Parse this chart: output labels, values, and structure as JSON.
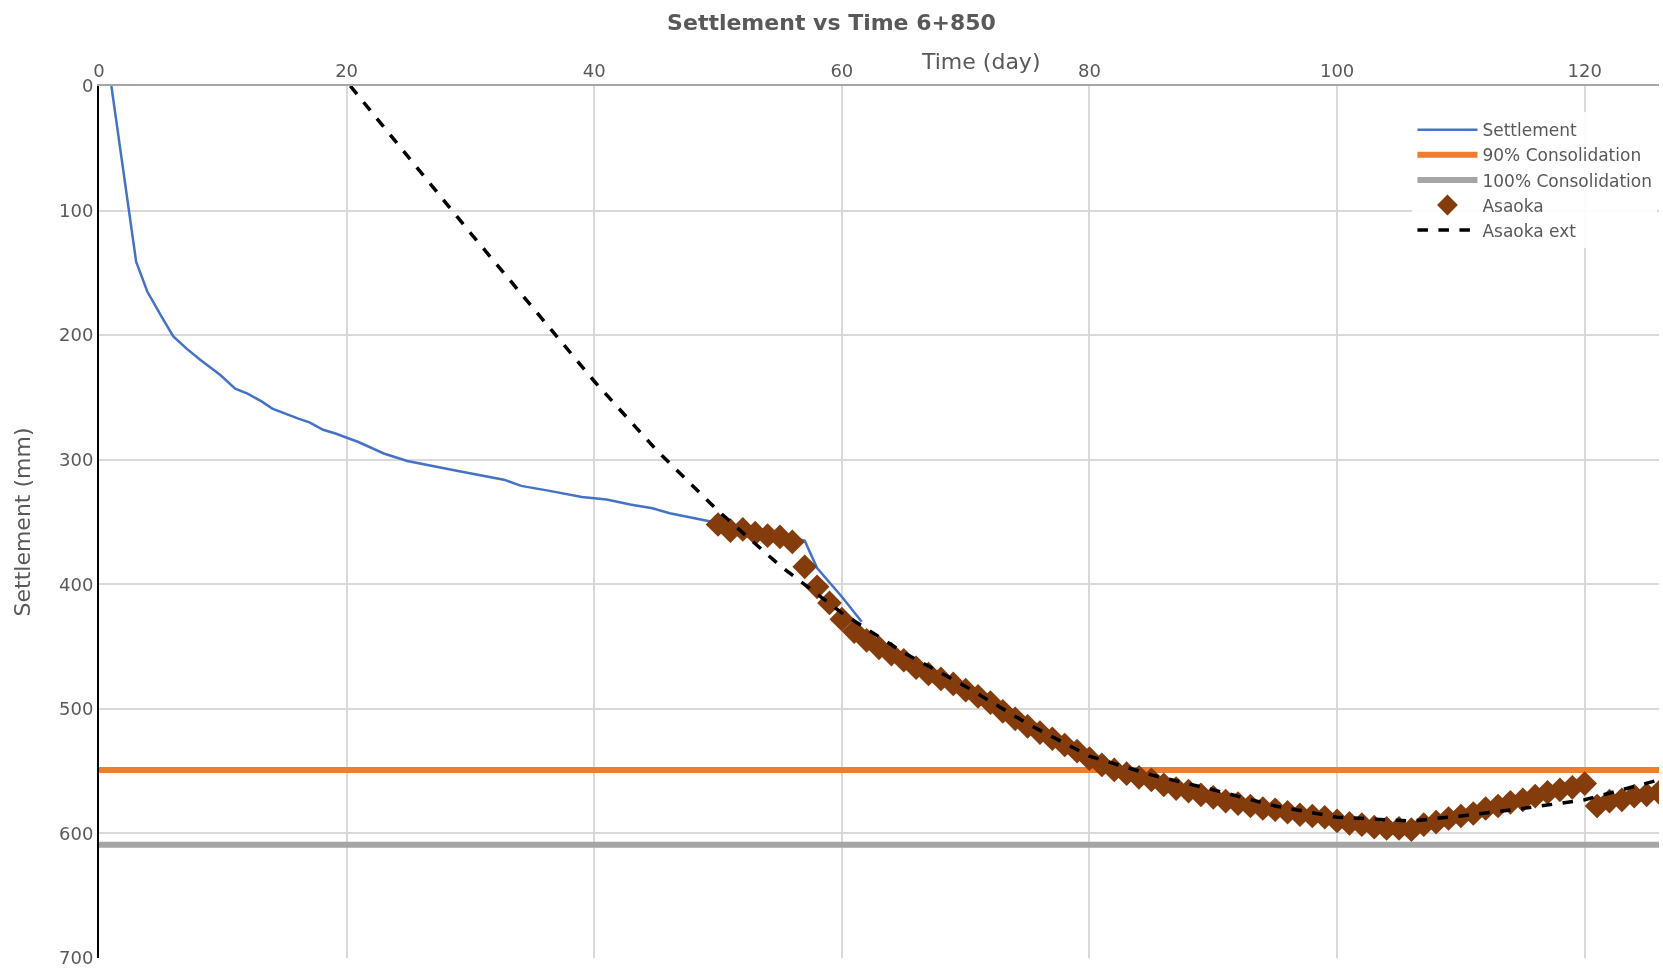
{
  "chart_data": {
    "type": "line",
    "title": "Settlement vs Time 6+850",
    "xlabel": "Time (day)",
    "ylabel": "Settlement (mm)",
    "xlim": [
      0,
      126
    ],
    "xticks": [
      0,
      20,
      40,
      60,
      80,
      100,
      120
    ],
    "ylim": [
      700,
      0
    ],
    "yticks": [
      0,
      100,
      200,
      300,
      400,
      500,
      600,
      700
    ],
    "grid": true,
    "legend": "top right",
    "series": [
      {
        "name": "Settlement",
        "color": "#4472c4",
        "x": [
          1.0,
          3.0,
          3.9,
          5.1,
          6.0,
          7.1,
          8.2,
          9.8,
          11.0,
          12.0,
          13.1,
          14.0,
          16.1,
          17.0,
          18.1,
          19.1,
          21.0,
          23.0,
          24.9,
          29.0,
          32.7,
          34.1,
          36.4,
          39.0,
          41.0,
          42.9,
          44.7,
          46.1,
          49.1,
          57.0,
          58.0,
          60.0,
          61.6
        ],
        "values": [
          0,
          141,
          165,
          186,
          201,
          211,
          220,
          232,
          243,
          247,
          253,
          259,
          267,
          270,
          276,
          279,
          286,
          295,
          301,
          309,
          316,
          321,
          325,
          330,
          332,
          336,
          339,
          343,
          349,
          365,
          387,
          410,
          430
        ]
      },
      {
        "name": "90% Consolidation",
        "color": "#ed7d31",
        "x": [
          0,
          126
        ],
        "values": [
          549,
          549
        ]
      },
      {
        "name": "100% Consolidation",
        "color": "#a5a5a5",
        "x": [
          0,
          126
        ],
        "values": [
          609,
          609
        ]
      },
      {
        "name": "Asaoka",
        "color": "#843c0c",
        "type": "scatter",
        "marker": "diamond",
        "x": [
          50,
          51,
          52,
          53,
          54,
          55,
          56,
          57,
          58,
          59,
          60,
          61,
          62,
          63,
          64,
          65,
          66,
          67,
          68,
          69,
          70,
          71,
          72,
          73,
          74,
          75,
          76,
          77,
          78,
          79,
          80,
          81,
          82,
          83,
          84,
          85,
          86,
          87,
          88,
          89,
          90,
          91,
          92,
          93,
          94,
          95,
          96,
          97,
          98,
          99,
          100,
          101,
          102,
          103,
          104,
          105,
          106,
          107,
          108,
          109,
          110,
          111,
          112,
          113,
          114,
          115,
          116,
          117,
          118,
          119,
          120,
          121,
          122,
          123,
          124,
          125,
          126
        ],
        "values": [
          352,
          357,
          356,
          359,
          361,
          362,
          366,
          386,
          402,
          415,
          428,
          438,
          445,
          451,
          456,
          461,
          467,
          472,
          476,
          480,
          485,
          490,
          495,
          502,
          508,
          514,
          519,
          524,
          529,
          534,
          540,
          545,
          549,
          552,
          555,
          557,
          561,
          564,
          566,
          569,
          571,
          574,
          576,
          578,
          580,
          581,
          583,
          585,
          586,
          587,
          590,
          592,
          593,
          595,
          596,
          596,
          597,
          593,
          591,
          588,
          586,
          584,
          580,
          578,
          575,
          573,
          570,
          567,
          565,
          563,
          560,
          578,
          574,
          573,
          570,
          569,
          567
        ]
      },
      {
        "name": "Asaoka ext",
        "color": "#000000",
        "line_style": "dashed",
        "x": [
          20.3,
          30,
          40,
          45,
          50,
          55,
          60,
          65,
          70,
          75,
          80,
          85,
          90,
          95,
          100,
          106,
          110,
          115,
          120,
          126
        ],
        "values": [
          0,
          118,
          237,
          292,
          341,
          385,
          423,
          455,
          482,
          512,
          538,
          553,
          565,
          578,
          587,
          590,
          586,
          580,
          573,
          557
        ]
      }
    ]
  }
}
